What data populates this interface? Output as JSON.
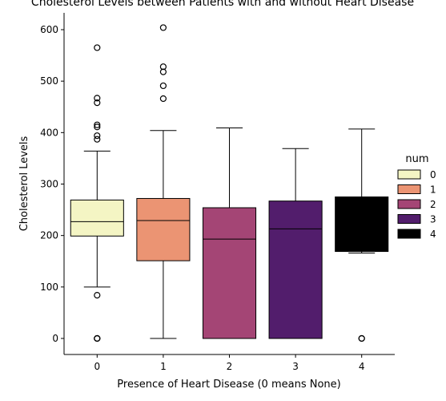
{
  "chart_data": {
    "type": "box",
    "title": "Cholesterol Levels between Patients with and without Heart Disease",
    "xlabel": "Presence of Heart Disease (0 means None)",
    "ylabel": "Cholesterol Levels",
    "categories": [
      "0",
      "1",
      "2",
      "3",
      "4"
    ],
    "ylim": [
      -30,
      635
    ],
    "yticks": [
      0,
      100,
      200,
      300,
      400,
      500,
      600
    ],
    "grid": false,
    "legend": {
      "title": "num",
      "position": "right",
      "entries": [
        "0",
        "1",
        "2",
        "3",
        "4"
      ]
    },
    "boxes": [
      {
        "category": "0",
        "color": "#f4f5c4",
        "whisker_low": 100,
        "q1": 199,
        "median": 227,
        "q3": 269,
        "whisker_high": 364,
        "outliers": [
          565,
          467,
          458,
          415,
          411,
          394,
          387,
          84,
          0,
          0,
          0
        ]
      },
      {
        "category": "1",
        "color": "#eb9473",
        "whisker_low": 0,
        "q1": 151,
        "median": 229,
        "q3": 272,
        "whisker_high": 404,
        "outliers": [
          604,
          528,
          518,
          491,
          466
        ]
      },
      {
        "category": "2",
        "color": "#a44575",
        "whisker_low": 0,
        "q1": 0,
        "median": 193,
        "q3": 254,
        "whisker_high": 409,
        "outliers": []
      },
      {
        "category": "3",
        "color": "#521d6c",
        "whisker_low": 0,
        "q1": 0,
        "median": 213,
        "q3": 267,
        "whisker_high": 369,
        "outliers": []
      },
      {
        "category": "4",
        "color": "#000000",
        "whisker_low": 166,
        "q1": 169,
        "median": 169,
        "q3": 275,
        "whisker_high": 407,
        "outliers": [
          0,
          0
        ]
      }
    ]
  }
}
